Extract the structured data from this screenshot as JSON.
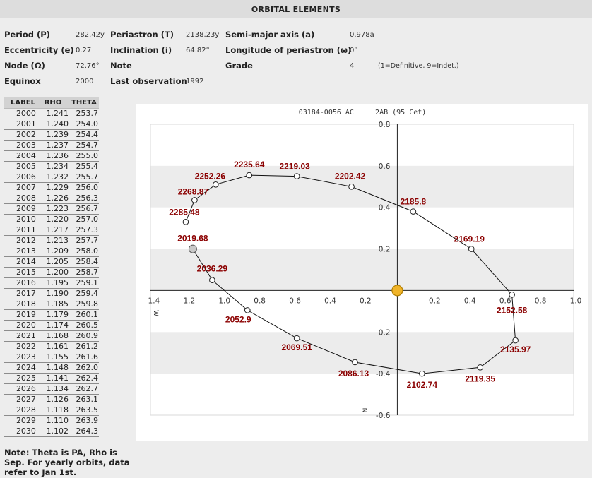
{
  "title": "ORBITAL ELEMENTS",
  "elements": {
    "period_label": "Period (P)",
    "period_value": "282.42y",
    "eccentricity_label": "Eccentricity (e)",
    "eccentricity_value": "0.27",
    "node_label": "Node (Ω)",
    "node_value": "72.76°",
    "equinox_label": "Equinox",
    "equinox_value": "2000",
    "periastron_label": "Periastron (T)",
    "periastron_value": "2138.23y",
    "inclination_label": "Inclination (i)",
    "inclination_value": "64.82°",
    "note_label": "Note",
    "last_obs_label": "Last observation",
    "last_obs_value": "1992",
    "semimajor_label": "Semi-major axis (a)",
    "semimajor_value": "0.978a",
    "long_periastron_label": "Longitude of periastron (ω)",
    "long_periastron_value": "0°",
    "grade_label": "Grade",
    "grade_value": "4",
    "grade_note": "(1=Definitive, 9=Indet.)"
  },
  "ephemeris": {
    "headers": [
      "LABEL",
      "RHO",
      "THETA"
    ],
    "rows": [
      [
        "2000",
        "1.241",
        "253.7"
      ],
      [
        "2001",
        "1.240",
        "254.0"
      ],
      [
        "2002",
        "1.239",
        "254.4"
      ],
      [
        "2003",
        "1.237",
        "254.7"
      ],
      [
        "2004",
        "1.236",
        "255.0"
      ],
      [
        "2005",
        "1.234",
        "255.4"
      ],
      [
        "2006",
        "1.232",
        "255.7"
      ],
      [
        "2007",
        "1.229",
        "256.0"
      ],
      [
        "2008",
        "1.226",
        "256.3"
      ],
      [
        "2009",
        "1.223",
        "256.7"
      ],
      [
        "2010",
        "1.220",
        "257.0"
      ],
      [
        "2011",
        "1.217",
        "257.3"
      ],
      [
        "2012",
        "1.213",
        "257.7"
      ],
      [
        "2013",
        "1.209",
        "258.0"
      ],
      [
        "2014",
        "1.205",
        "258.4"
      ],
      [
        "2015",
        "1.200",
        "258.7"
      ],
      [
        "2016",
        "1.195",
        "259.1"
      ],
      [
        "2017",
        "1.190",
        "259.4"
      ],
      [
        "2018",
        "1.185",
        "259.8"
      ],
      [
        "2019",
        "1.179",
        "260.1"
      ],
      [
        "2020",
        "1.174",
        "260.5"
      ],
      [
        "2021",
        "1.168",
        "260.9"
      ],
      [
        "2022",
        "1.161",
        "261.2"
      ],
      [
        "2023",
        "1.155",
        "261.6"
      ],
      [
        "2024",
        "1.148",
        "262.0"
      ],
      [
        "2025",
        "1.141",
        "262.4"
      ],
      [
        "2026",
        "1.134",
        "262.7"
      ],
      [
        "2027",
        "1.126",
        "263.1"
      ],
      [
        "2028",
        "1.118",
        "263.5"
      ],
      [
        "2029",
        "1.110",
        "263.9"
      ],
      [
        "2030",
        "1.102",
        "264.3"
      ]
    ]
  },
  "note_text": "Note: Theta is PA, Rho is Sep. For yearly orbits, data refer to Jan 1st.",
  "chart_data": {
    "type": "scatter",
    "title": "03184-0056 AC     2AB (95 Cet)",
    "xlabel": "W",
    "ylabel": "N",
    "xlim": [
      -1.4,
      1.0
    ],
    "ylim": [
      -0.6,
      0.8
    ],
    "xticks": [
      "-1.4",
      "-1.2",
      "-1.0",
      "-0.8",
      "-0.6",
      "-0.4",
      "-0.2",
      "0.2",
      "0.4",
      "0.6",
      "0.8",
      "1.0"
    ],
    "xtick_values": [
      -1.4,
      -1.2,
      -1.0,
      -0.8,
      -0.6,
      -0.4,
      -0.2,
      0.2,
      0.4,
      0.6,
      0.8,
      1.0
    ],
    "yticks": [
      "0.8",
      "0.6",
      "0.4",
      "0.2",
      "-0.2",
      "-0.4",
      "-0.6"
    ],
    "ytick_values": [
      0.8,
      0.6,
      0.4,
      0.2,
      -0.2,
      -0.4,
      -0.6
    ],
    "primary_star": {
      "x": 0.0,
      "y": 0.0,
      "color": "#f0b429"
    },
    "start_point": {
      "label": "2019.68",
      "x": -1.16,
      "y": 0.2
    },
    "orbit_points": [
      {
        "label": "2019.68",
        "x": -1.16,
        "y": 0.2
      },
      {
        "label": "2036.29",
        "x": -1.05,
        "y": 0.05
      },
      {
        "label": "2052.9",
        "x": -0.85,
        "y": -0.095
      },
      {
        "label": "2069.51",
        "x": -0.57,
        "y": -0.23
      },
      {
        "label": "2086.13",
        "x": -0.24,
        "y": -0.345
      },
      {
        "label": "2102.74",
        "x": 0.14,
        "y": -0.4
      },
      {
        "label": "2119.35",
        "x": 0.47,
        "y": -0.37
      },
      {
        "label": "2135.97",
        "x": 0.67,
        "y": -0.24
      },
      {
        "label": "2152.58",
        "x": 0.65,
        "y": -0.02
      },
      {
        "label": "2169.19",
        "x": 0.42,
        "y": 0.2
      },
      {
        "label": "2185.8",
        "x": 0.09,
        "y": 0.38
      },
      {
        "label": "2202.42",
        "x": -0.26,
        "y": 0.5
      },
      {
        "label": "2219.03",
        "x": -0.57,
        "y": 0.55
      },
      {
        "label": "2235.64",
        "x": -0.84,
        "y": 0.555
      },
      {
        "label": "2252.26",
        "x": -1.03,
        "y": 0.51
      },
      {
        "label": "2268.87",
        "x": -1.15,
        "y": 0.435
      },
      {
        "label": "2285.48",
        "x": -1.2,
        "y": 0.33
      }
    ],
    "label_color": "#8b0000",
    "band_color": "#ececec",
    "grid": false
  }
}
